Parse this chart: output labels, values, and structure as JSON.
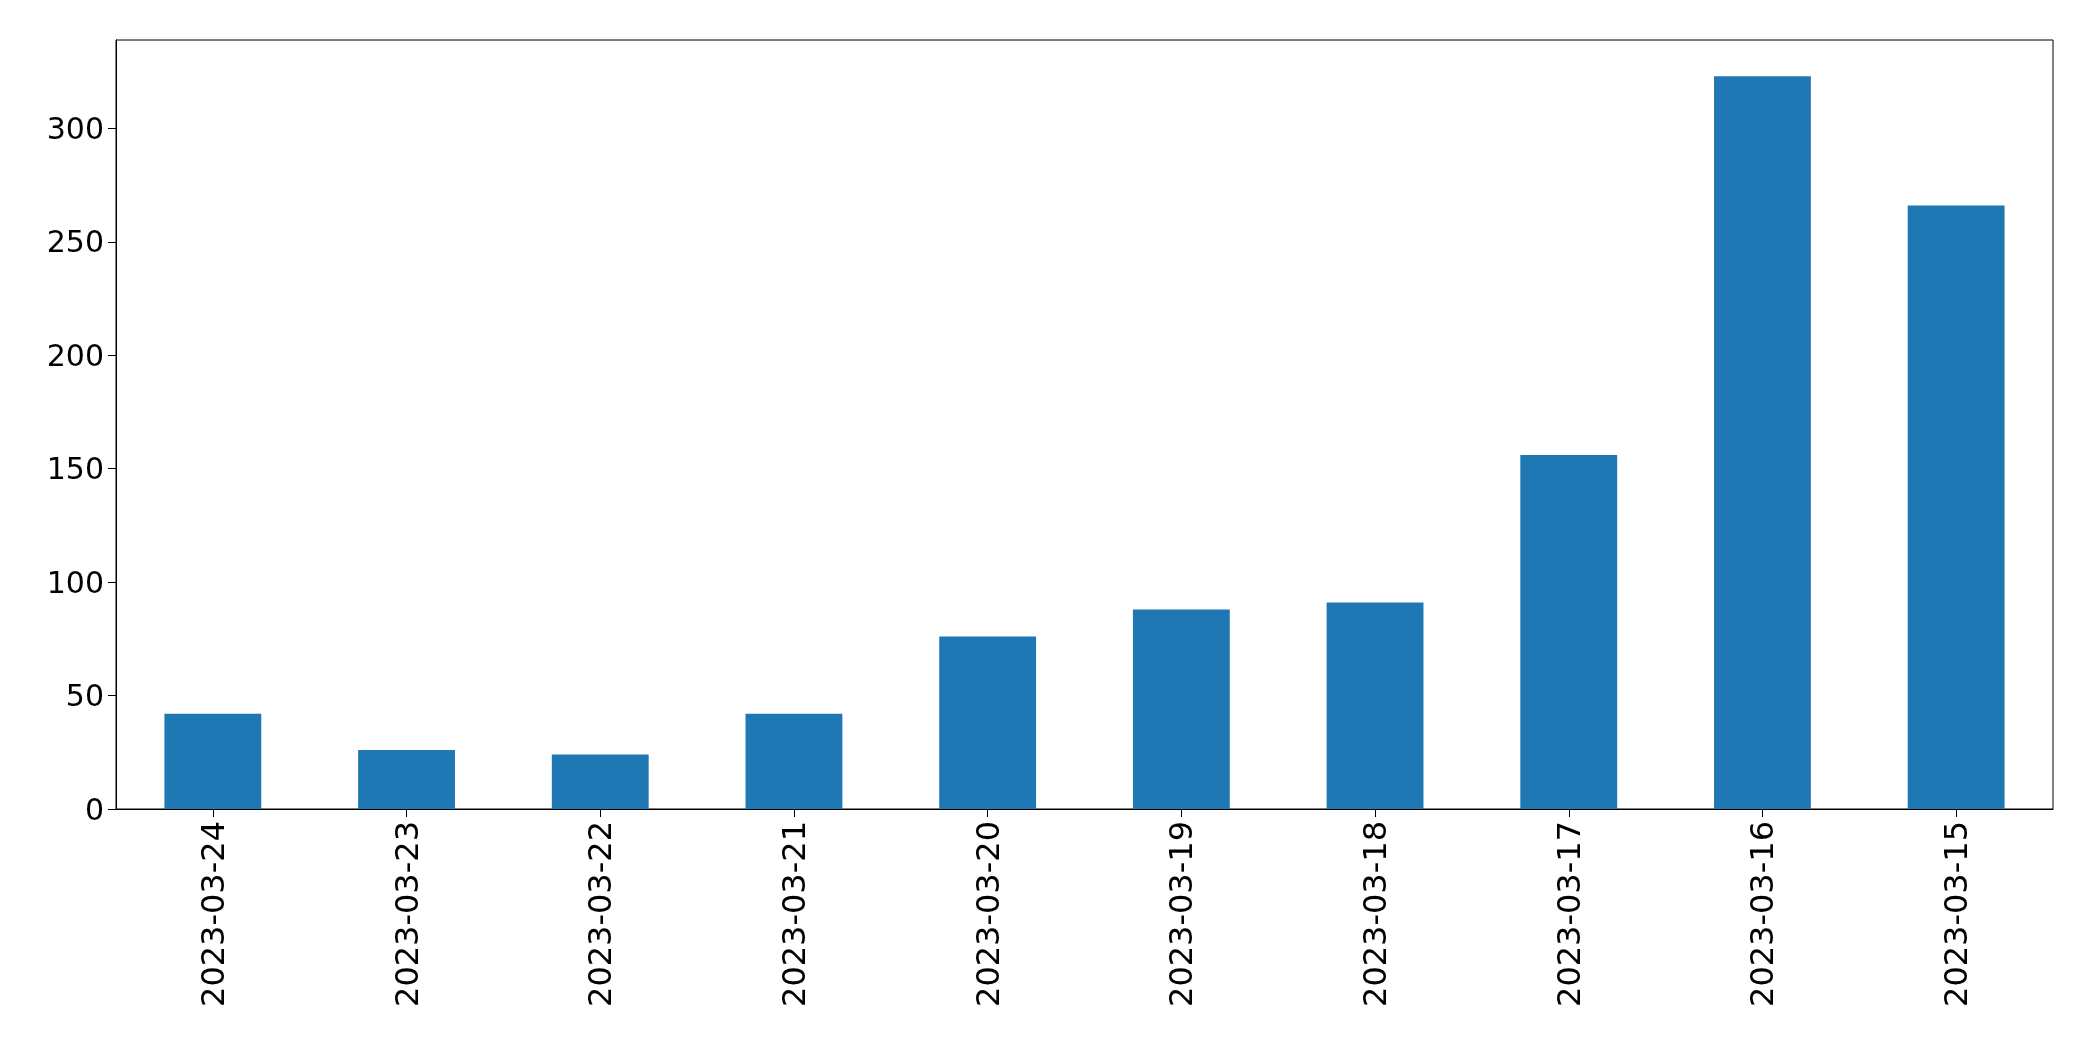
{
  "chart_data": {
    "type": "bar",
    "categories": [
      "2023-03-24",
      "2023-03-23",
      "2023-03-22",
      "2023-03-21",
      "2023-03-20",
      "2023-03-19",
      "2023-03-18",
      "2023-03-17",
      "2023-03-16",
      "2023-03-15"
    ],
    "values": [
      42,
      26,
      24,
      42,
      76,
      88,
      91,
      156,
      323,
      266
    ],
    "color": "#1f77b4",
    "ylim": [
      0,
      339
    ],
    "yticks": [
      0,
      50,
      100,
      150,
      200,
      250,
      300
    ]
  }
}
